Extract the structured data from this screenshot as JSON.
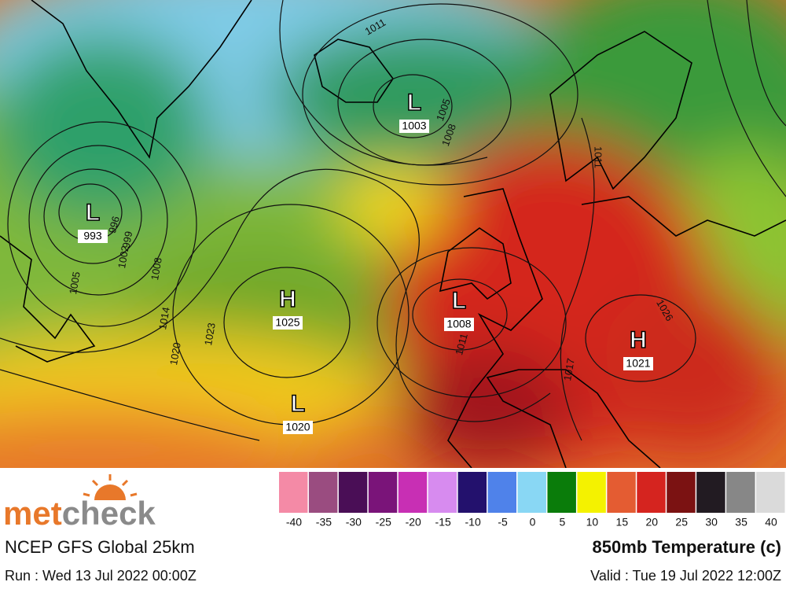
{
  "map": {
    "systems": [
      {
        "type": "L",
        "pressure": 993
      },
      {
        "type": "L",
        "pressure": 1003
      },
      {
        "type": "H",
        "pressure": 1025
      },
      {
        "type": "L",
        "pressure": 1008
      },
      {
        "type": "H",
        "pressure": 1021
      },
      {
        "type": "L",
        "pressure": 1020
      }
    ],
    "isobar_labels": [
      1011,
      1005,
      1008,
      1011,
      996,
      999,
      1002,
      1008,
      1005,
      1014,
      1020,
      1023,
      1011,
      1017,
      1026
    ]
  },
  "legend": {
    "colors": [
      "#f48aa6",
      "#9a4c80",
      "#4a0e56",
      "#7a1479",
      "#c82fb4",
      "#d78bef",
      "#23116d",
      "#4f82ea",
      "#89d7f4",
      "#0a7c0a",
      "#f4f200",
      "#e45c32",
      "#d5241f",
      "#7b1212",
      "#221b22",
      "#878787",
      "#dadada"
    ],
    "ticks": [
      -40,
      -35,
      -30,
      -25,
      -20,
      -15,
      -10,
      -5,
      0,
      5,
      10,
      15,
      20,
      25,
      30,
      35,
      40
    ]
  },
  "footer": {
    "brand": [
      "met",
      "check"
    ],
    "model": "NCEP GFS Global 25km",
    "run": "Run : Wed 13 Jul 2022 00:00Z",
    "title": "850mb Temperature (c)",
    "valid": "Valid : Tue 19 Jul 2022 12:00Z"
  }
}
